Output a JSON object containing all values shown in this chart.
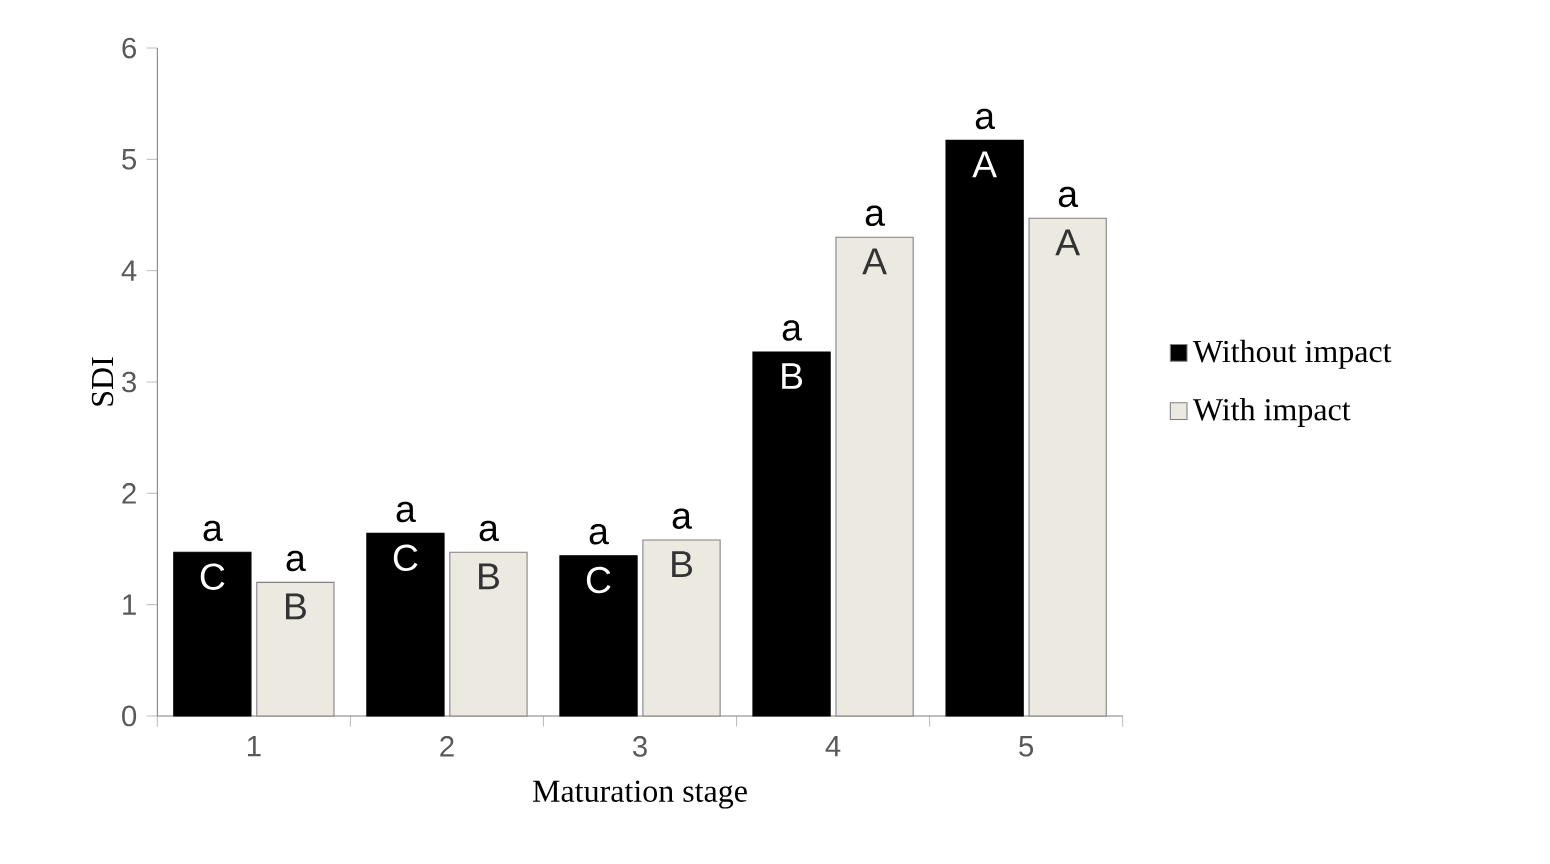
{
  "chart_data": {
    "type": "bar",
    "xlabel": "Maturation stage",
    "ylabel": "SDI",
    "categories": [
      "1",
      "2",
      "3",
      "4",
      "5"
    ],
    "series": [
      {
        "name": "Without impact",
        "color": "#000000",
        "values": [
          1.47,
          1.64,
          1.44,
          3.27,
          5.17
        ]
      },
      {
        "name": "With impact",
        "color": "#ece9e0",
        "values": [
          1.2,
          1.47,
          1.58,
          4.3,
          4.47
        ]
      }
    ],
    "ylim": [
      0,
      6
    ],
    "yticks": [
      0,
      1,
      2,
      3,
      4,
      5,
      6
    ],
    "grid": false,
    "legend": "right",
    "annotations": [
      {
        "text": "a",
        "x": "1",
        "y": 1.47
      },
      {
        "text": "C",
        "x": "1",
        "y": 1.47
      },
      {
        "text": "a",
        "x": "1",
        "y": 1.2
      },
      {
        "text": "B",
        "x": "1",
        "y": 1.2
      },
      {
        "text": "a",
        "x": "2",
        "y": 1.64
      },
      {
        "text": "C",
        "x": "2",
        "y": 1.64
      },
      {
        "text": "a",
        "x": "2",
        "y": 1.47
      },
      {
        "text": "B",
        "x": "2",
        "y": 1.47
      },
      {
        "text": "a",
        "x": "3",
        "y": 1.44
      },
      {
        "text": "C",
        "x": "3",
        "y": 1.44
      },
      {
        "text": "a",
        "x": "3",
        "y": 1.58
      },
      {
        "text": "B",
        "x": "3",
        "y": 1.58
      },
      {
        "text": "a",
        "x": "4",
        "y": 3.27
      },
      {
        "text": "B",
        "x": "4",
        "y": 3.27
      },
      {
        "text": "a",
        "x": "4",
        "y": 4.3
      },
      {
        "text": "A",
        "x": "4",
        "y": 4.3
      },
      {
        "text": "a",
        "x": "5",
        "y": 5.17
      },
      {
        "text": "A",
        "x": "5",
        "y": 5.17
      },
      {
        "text": "a",
        "x": "5",
        "y": 4.47
      },
      {
        "text": "A",
        "x": "5",
        "y": 4.47
      }
    ]
  }
}
